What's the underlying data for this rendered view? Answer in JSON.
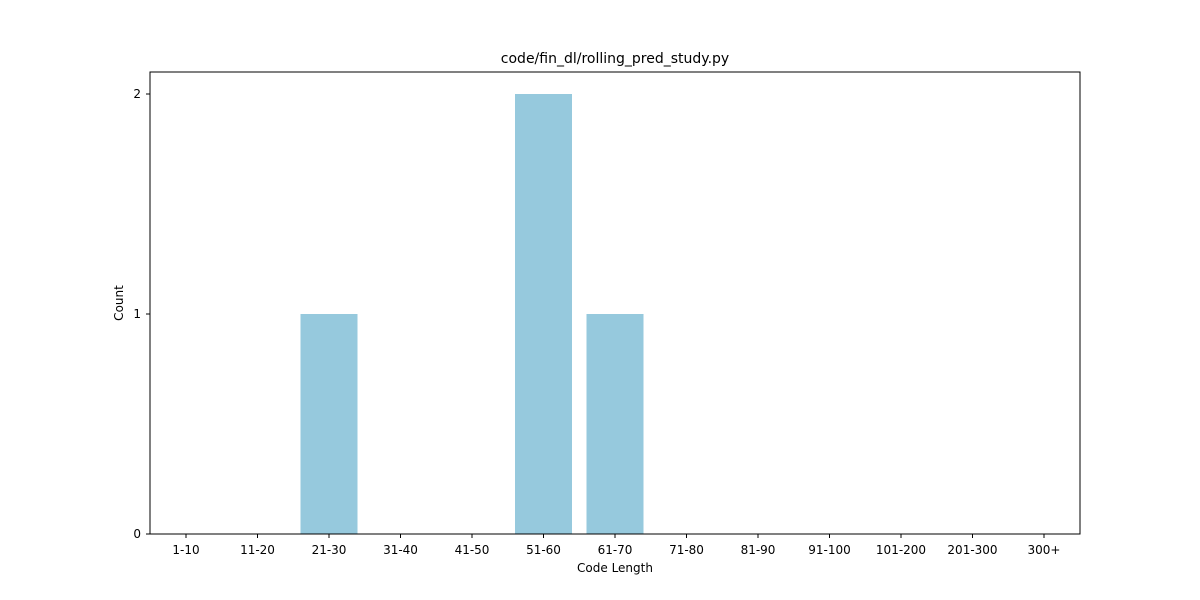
{
  "chart_data": {
    "type": "bar",
    "title": "code/fin_dl/rolling_pred_study.py",
    "xlabel": "Code Length",
    "ylabel": "Count",
    "categories": [
      "1-10",
      "11-20",
      "21-30",
      "31-40",
      "41-50",
      "51-60",
      "61-70",
      "71-80",
      "81-90",
      "91-100",
      "101-200",
      "201-300",
      "300+"
    ],
    "values": [
      0,
      0,
      1,
      0,
      0,
      2,
      1,
      0,
      0,
      0,
      0,
      0,
      0
    ],
    "ylim": [
      0,
      2.1
    ],
    "yticks": [
      0,
      1,
      2
    ],
    "bar_color": "#96c9dd",
    "grid": false,
    "legend": "none"
  }
}
